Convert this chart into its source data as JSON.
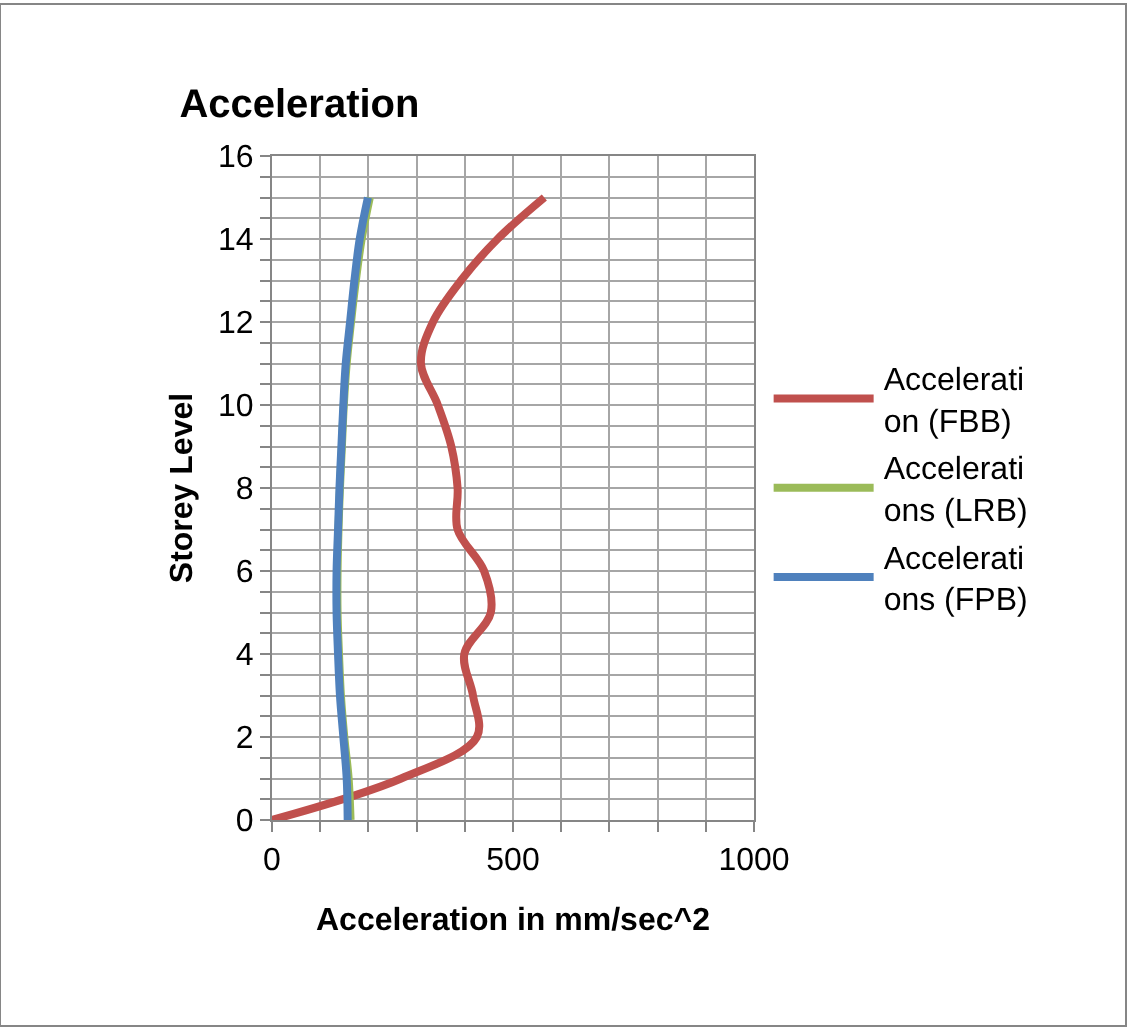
{
  "chart_data": {
    "type": "line",
    "title": "Acceleration",
    "xlabel": "Acceleration in mm/sec^2",
    "ylabel": "Storey Level",
    "series": [
      {
        "name": "Acceleration (FBB)",
        "color": "#c0504d",
        "x": [
          0,
          268,
          425,
          417,
          399,
          454,
          440,
          385,
          385,
          372,
          344,
          309,
          334,
          392,
          468,
          565
        ],
        "values": [
          0,
          1,
          2,
          3,
          4,
          5,
          6,
          7,
          8,
          9,
          10,
          11,
          12,
          13,
          14,
          15
        ]
      },
      {
        "name": "Accelerations (LRB)",
        "color": "#9bbb59",
        "x": [
          163,
          159,
          150,
          143,
          139,
          136,
          136,
          138,
          141,
          145,
          149,
          155,
          164,
          174,
          186,
          203
        ],
        "values": [
          0,
          1,
          2,
          3,
          4,
          5,
          6,
          7,
          8,
          9,
          10,
          11,
          12,
          13,
          14,
          15
        ]
      },
      {
        "name": "Accelerations (FPB)",
        "color": "#4f81bd",
        "x": [
          157,
          155,
          148,
          141,
          137,
          134,
          134,
          137,
          140,
          144,
          148,
          153,
          162,
          171,
          182,
          199
        ],
        "values": [
          0,
          1,
          2,
          3,
          4,
          5,
          6,
          7,
          8,
          9,
          10,
          11,
          12,
          13,
          14,
          15
        ]
      }
    ],
    "xlim": [
      0,
      1000
    ],
    "xticks": [
      0,
      {
        "value": 100,
        "label": null
      },
      {
        "value": 200,
        "label": null
      },
      {
        "value": 300,
        "label": null
      },
      {
        "value": 400,
        "label": null
      },
      500,
      {
        "value": 600,
        "label": null
      },
      {
        "value": 700,
        "label": null
      },
      {
        "value": 800,
        "label": null
      },
      {
        "value": 900,
        "label": null
      },
      1000
    ],
    "ylim": [
      0,
      16
    ],
    "yticks": [
      0,
      {
        "value": 0.5,
        "label": null
      },
      {
        "value": 1,
        "label": null
      },
      {
        "value": 1.5,
        "label": null
      },
      2,
      {
        "value": 2.5,
        "label": null
      },
      {
        "value": 3,
        "label": null
      },
      {
        "value": 3.5,
        "label": null
      },
      4,
      {
        "value": 4.5,
        "label": null
      },
      {
        "value": 5,
        "label": null
      },
      {
        "value": 5.5,
        "label": null
      },
      6,
      {
        "value": 6.5,
        "label": null
      },
      {
        "value": 7,
        "label": null
      },
      {
        "value": 7.5,
        "label": null
      },
      8,
      {
        "value": 8.5,
        "label": null
      },
      {
        "value": 9,
        "label": null
      },
      {
        "value": 9.5,
        "label": null
      },
      10,
      {
        "value": 10.5,
        "label": null
      },
      {
        "value": 11,
        "label": null
      },
      {
        "value": 11.5,
        "label": null
      },
      12,
      {
        "value": 12.5,
        "label": null
      },
      {
        "value": 13,
        "label": null
      },
      {
        "value": 13.5,
        "label": null
      },
      14,
      {
        "value": 14.5,
        "label": null
      },
      {
        "value": 15,
        "label": null
      },
      {
        "value": 15.5,
        "label": null
      },
      16
    ],
    "grid": true,
    "legend": "right",
    "marker": "none",
    "line_style": "solid"
  }
}
